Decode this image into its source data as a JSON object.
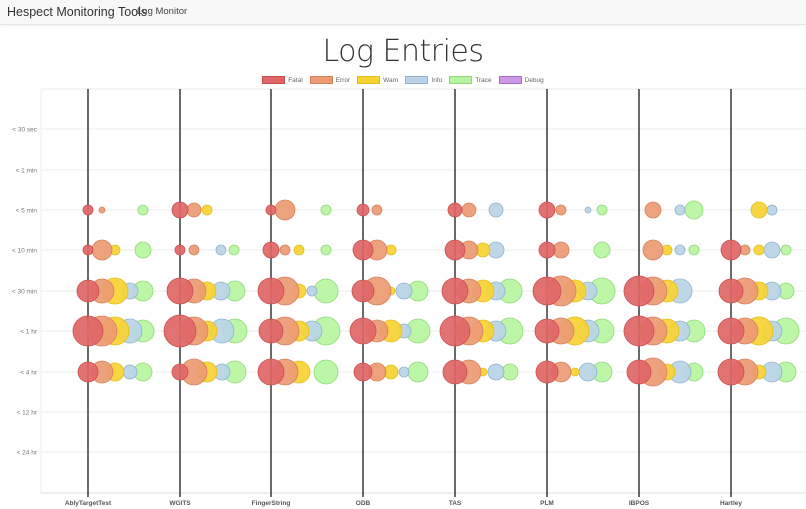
{
  "navbar": {
    "brand": "Hespect Monitoring Tools",
    "links": [
      "Log Monitor"
    ]
  },
  "chart_data": {
    "type": "scatter",
    "subtype": "bubble",
    "title": "Log Entries",
    "xlabel": "",
    "ylabel": "",
    "legend_position": "top",
    "grid": true,
    "legend": [
      {
        "name": "Fatal",
        "color": "#e06666",
        "border": "#c94f4f"
      },
      {
        "name": "Error",
        "color": "#eb9a73",
        "border": "#d8805a"
      },
      {
        "name": "Warn",
        "color": "#f7d332",
        "border": "#e3bd1e"
      },
      {
        "name": "Info",
        "color": "#b8d4e6",
        "border": "#8fb3cf"
      },
      {
        "name": "Trace",
        "color": "#b7f5a0",
        "border": "#8fd97a"
      },
      {
        "name": "Debug",
        "color": "#cc99e6",
        "border": "#a970c9"
      }
    ],
    "categories": [
      "AblyTargetTest",
      "WGITS",
      "FingerString",
      "ODB",
      "TAS",
      "PLM",
      "IBPOS",
      "Hartley"
    ],
    "y_ticks": [
      "< 30 sec",
      "< 1 min",
      "< 5 min",
      "< 10 min",
      "< 30 min",
      "< 1 hr",
      "< 4 hr",
      "< 12 hr",
      "< 24 hr"
    ],
    "series_note": "Each entry: [category_index, y_tick_index, level, x_offset_px, radius_px]",
    "bubbles": [
      [
        0,
        2,
        "Fatal",
        0,
        5
      ],
      [
        0,
        2,
        "Error",
        14,
        3
      ],
      [
        0,
        2,
        "Trace",
        55,
        5
      ],
      [
        0,
        3,
        "Fatal",
        0,
        5
      ],
      [
        0,
        3,
        "Error",
        14,
        10
      ],
      [
        0,
        3,
        "Warn",
        27,
        5
      ],
      [
        0,
        3,
        "Trace",
        55,
        8
      ],
      [
        0,
        4,
        "Fatal",
        0,
        11
      ],
      [
        0,
        4,
        "Error",
        14,
        12
      ],
      [
        0,
        4,
        "Warn",
        27,
        13
      ],
      [
        0,
        4,
        "Info",
        42,
        8
      ],
      [
        0,
        4,
        "Trace",
        55,
        10
      ],
      [
        0,
        5,
        "Fatal",
        0,
        15
      ],
      [
        0,
        5,
        "Error",
        14,
        15
      ],
      [
        0,
        5,
        "Warn",
        27,
        14
      ],
      [
        0,
        5,
        "Info",
        42,
        12
      ],
      [
        0,
        5,
        "Trace",
        55,
        11
      ],
      [
        0,
        6,
        "Fatal",
        0,
        10
      ],
      [
        0,
        6,
        "Error",
        14,
        11
      ],
      [
        0,
        6,
        "Warn",
        27,
        9
      ],
      [
        0,
        6,
        "Info",
        42,
        7
      ],
      [
        0,
        6,
        "Trace",
        55,
        9
      ],
      [
        1,
        2,
        "Fatal",
        0,
        8
      ],
      [
        1,
        2,
        "Error",
        14,
        7
      ],
      [
        1,
        2,
        "Warn",
        27,
        5
      ],
      [
        1,
        3,
        "Fatal",
        0,
        5
      ],
      [
        1,
        3,
        "Error",
        14,
        5
      ],
      [
        1,
        3,
        "Info",
        41,
        5
      ],
      [
        1,
        3,
        "Trace",
        54,
        5
      ],
      [
        1,
        4,
        "Fatal",
        0,
        13
      ],
      [
        1,
        4,
        "Error",
        14,
        12
      ],
      [
        1,
        4,
        "Warn",
        27,
        9
      ],
      [
        1,
        4,
        "Info",
        41,
        9
      ],
      [
        1,
        4,
        "Trace",
        55,
        10
      ],
      [
        1,
        5,
        "Fatal",
        0,
        16
      ],
      [
        1,
        5,
        "Error",
        14,
        14
      ],
      [
        1,
        5,
        "Warn",
        27,
        10
      ],
      [
        1,
        5,
        "Info",
        42,
        12
      ],
      [
        1,
        5,
        "Trace",
        55,
        12
      ],
      [
        1,
        6,
        "Fatal",
        0,
        8
      ],
      [
        1,
        6,
        "Error",
        14,
        13
      ],
      [
        1,
        6,
        "Warn",
        27,
        10
      ],
      [
        1,
        6,
        "Info",
        42,
        8
      ],
      [
        1,
        6,
        "Trace",
        55,
        11
      ],
      [
        2,
        2,
        "Fatal",
        0,
        5
      ],
      [
        2,
        2,
        "Error",
        14,
        10
      ],
      [
        2,
        2,
        "Trace",
        55,
        5
      ],
      [
        2,
        3,
        "Fatal",
        0,
        8
      ],
      [
        2,
        3,
        "Error",
        14,
        5
      ],
      [
        2,
        3,
        "Warn",
        28,
        5
      ],
      [
        2,
        3,
        "Trace",
        55,
        5
      ],
      [
        2,
        4,
        "Fatal",
        0,
        13
      ],
      [
        2,
        4,
        "Error",
        14,
        14
      ],
      [
        2,
        4,
        "Warn",
        28,
        7
      ],
      [
        2,
        4,
        "Info",
        41,
        5
      ],
      [
        2,
        4,
        "Trace",
        55,
        12
      ],
      [
        2,
        5,
        "Fatal",
        0,
        12
      ],
      [
        2,
        5,
        "Error",
        14,
        14
      ],
      [
        2,
        5,
        "Warn",
        28,
        10
      ],
      [
        2,
        5,
        "Info",
        41,
        10
      ],
      [
        2,
        5,
        "Trace",
        55,
        14
      ],
      [
        2,
        6,
        "Fatal",
        0,
        13
      ],
      [
        2,
        6,
        "Error",
        14,
        13
      ],
      [
        2,
        6,
        "Warn",
        28,
        11
      ],
      [
        2,
        6,
        "Trace",
        55,
        12
      ],
      [
        3,
        2,
        "Fatal",
        0,
        6
      ],
      [
        3,
        2,
        "Error",
        14,
        5
      ],
      [
        3,
        3,
        "Fatal",
        0,
        10
      ],
      [
        3,
        3,
        "Error",
        14,
        10
      ],
      [
        3,
        3,
        "Warn",
        28,
        5
      ],
      [
        3,
        4,
        "Fatal",
        0,
        11
      ],
      [
        3,
        4,
        "Error",
        14,
        14
      ],
      [
        3,
        4,
        "Warn",
        28,
        4
      ],
      [
        3,
        4,
        "Info",
        41,
        8
      ],
      [
        3,
        4,
        "Trace",
        55,
        10
      ],
      [
        3,
        5,
        "Fatal",
        0,
        13
      ],
      [
        3,
        5,
        "Error",
        14,
        11
      ],
      [
        3,
        5,
        "Warn",
        28,
        11
      ],
      [
        3,
        5,
        "Info",
        41,
        7
      ],
      [
        3,
        5,
        "Trace",
        55,
        12
      ],
      [
        3,
        6,
        "Fatal",
        0,
        9
      ],
      [
        3,
        6,
        "Error",
        14,
        9
      ],
      [
        3,
        6,
        "Warn",
        28,
        7
      ],
      [
        3,
        6,
        "Info",
        41,
        5
      ],
      [
        3,
        6,
        "Trace",
        55,
        10
      ],
      [
        4,
        2,
        "Fatal",
        0,
        7
      ],
      [
        4,
        2,
        "Error",
        14,
        7
      ],
      [
        4,
        2,
        "Info",
        41,
        7
      ],
      [
        4,
        3,
        "Fatal",
        0,
        10
      ],
      [
        4,
        3,
        "Error",
        14,
        9
      ],
      [
        4,
        3,
        "Warn",
        28,
        7
      ],
      [
        4,
        3,
        "Info",
        41,
        8
      ],
      [
        4,
        4,
        "Fatal",
        0,
        13
      ],
      [
        4,
        4,
        "Error",
        14,
        12
      ],
      [
        4,
        4,
        "Warn",
        28,
        11
      ],
      [
        4,
        4,
        "Info",
        41,
        9
      ],
      [
        4,
        4,
        "Trace",
        55,
        12
      ],
      [
        4,
        5,
        "Fatal",
        0,
        15
      ],
      [
        4,
        5,
        "Error",
        14,
        14
      ],
      [
        4,
        5,
        "Warn",
        28,
        11
      ],
      [
        4,
        5,
        "Info",
        41,
        10
      ],
      [
        4,
        5,
        "Trace",
        55,
        13
      ],
      [
        4,
        6,
        "Fatal",
        0,
        12
      ],
      [
        4,
        6,
        "Error",
        14,
        12
      ],
      [
        4,
        6,
        "Warn",
        28,
        4
      ],
      [
        4,
        6,
        "Info",
        41,
        8
      ],
      [
        4,
        6,
        "Trace",
        55,
        8
      ],
      [
        5,
        2,
        "Fatal",
        0,
        8
      ],
      [
        5,
        2,
        "Error",
        14,
        5
      ],
      [
        5,
        2,
        "Info",
        41,
        3
      ],
      [
        5,
        2,
        "Trace",
        55,
        5
      ],
      [
        5,
        3,
        "Fatal",
        0,
        8
      ],
      [
        5,
        3,
        "Error",
        14,
        8
      ],
      [
        5,
        3,
        "Trace",
        55,
        8
      ],
      [
        5,
        4,
        "Fatal",
        0,
        14
      ],
      [
        5,
        4,
        "Error",
        14,
        15
      ],
      [
        5,
        4,
        "Warn",
        28,
        11
      ],
      [
        5,
        4,
        "Info",
        41,
        9
      ],
      [
        5,
        4,
        "Trace",
        55,
        13
      ],
      [
        5,
        5,
        "Fatal",
        0,
        12
      ],
      [
        5,
        5,
        "Error",
        14,
        13
      ],
      [
        5,
        5,
        "Warn",
        28,
        14
      ],
      [
        5,
        5,
        "Info",
        41,
        11
      ],
      [
        5,
        5,
        "Trace",
        55,
        12
      ],
      [
        5,
        6,
        "Fatal",
        0,
        11
      ],
      [
        5,
        6,
        "Error",
        14,
        10
      ],
      [
        5,
        6,
        "Warn",
        28,
        4
      ],
      [
        5,
        6,
        "Info",
        41,
        9
      ],
      [
        5,
        6,
        "Trace",
        55,
        10
      ],
      [
        6,
        2,
        "Error",
        14,
        8
      ],
      [
        6,
        2,
        "Info",
        41,
        5
      ],
      [
        6,
        2,
        "Trace",
        55,
        9
      ],
      [
        6,
        3,
        "Error",
        14,
        10
      ],
      [
        6,
        3,
        "Warn",
        28,
        5
      ],
      [
        6,
        3,
        "Info",
        41,
        5
      ],
      [
        6,
        3,
        "Trace",
        55,
        5
      ],
      [
        6,
        4,
        "Fatal",
        0,
        15
      ],
      [
        6,
        4,
        "Error",
        14,
        14
      ],
      [
        6,
        4,
        "Warn",
        28,
        11
      ],
      [
        6,
        4,
        "Info",
        41,
        12
      ],
      [
        6,
        5,
        "Fatal",
        0,
        15
      ],
      [
        6,
        5,
        "Error",
        14,
        14
      ],
      [
        6,
        5,
        "Warn",
        28,
        12
      ],
      [
        6,
        5,
        "Info",
        41,
        10
      ],
      [
        6,
        5,
        "Trace",
        55,
        11
      ],
      [
        6,
        6,
        "Fatal",
        0,
        12
      ],
      [
        6,
        6,
        "Error",
        14,
        14
      ],
      [
        6,
        6,
        "Warn",
        28,
        8
      ],
      [
        6,
        6,
        "Info",
        41,
        11
      ],
      [
        6,
        6,
        "Trace",
        55,
        9
      ],
      [
        7,
        2,
        "Warn",
        28,
        8
      ],
      [
        7,
        2,
        "Info",
        41,
        5
      ],
      [
        7,
        3,
        "Fatal",
        0,
        10
      ],
      [
        7,
        3,
        "Error",
        14,
        5
      ],
      [
        7,
        3,
        "Warn",
        28,
        5
      ],
      [
        7,
        3,
        "Info",
        41,
        8
      ],
      [
        7,
        3,
        "Trace",
        55,
        5
      ],
      [
        7,
        4,
        "Fatal",
        0,
        12
      ],
      [
        7,
        4,
        "Error",
        14,
        13
      ],
      [
        7,
        4,
        "Warn",
        28,
        9
      ],
      [
        7,
        4,
        "Info",
        41,
        9
      ],
      [
        7,
        4,
        "Trace",
        55,
        8
      ],
      [
        7,
        5,
        "Fatal",
        0,
        13
      ],
      [
        7,
        5,
        "Error",
        14,
        13
      ],
      [
        7,
        5,
        "Warn",
        28,
        14
      ],
      [
        7,
        5,
        "Info",
        41,
        10
      ],
      [
        7,
        5,
        "Trace",
        55,
        13
      ],
      [
        7,
        6,
        "Fatal",
        0,
        13
      ],
      [
        7,
        6,
        "Error",
        14,
        13
      ],
      [
        7,
        6,
        "Warn",
        28,
        7
      ],
      [
        7,
        6,
        "Info",
        41,
        10
      ],
      [
        7,
        6,
        "Trace",
        55,
        10
      ]
    ]
  }
}
